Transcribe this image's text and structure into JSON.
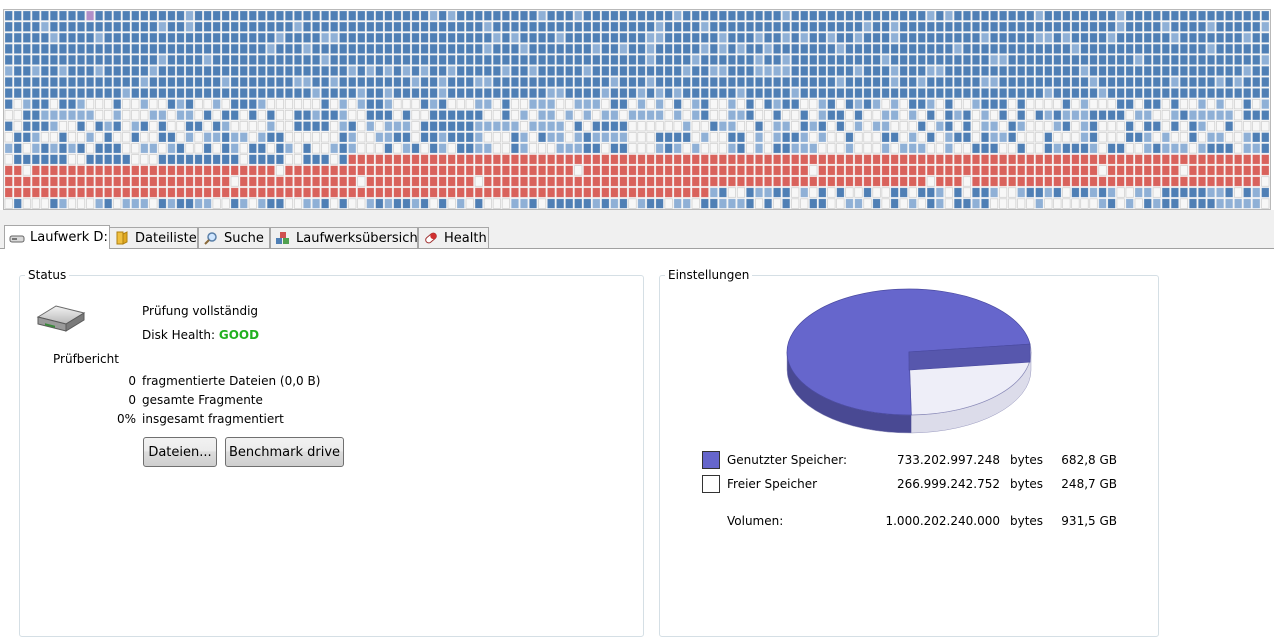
{
  "tabs": [
    {
      "label": "Laufwerk D:",
      "icon": "drive-icon",
      "active": true
    },
    {
      "label": "Dateiliste",
      "icon": "folder-icon",
      "active": false
    },
    {
      "label": "Suche",
      "icon": "magnifier-icon",
      "active": false
    },
    {
      "label": "Laufwerksübersicht",
      "icon": "blocks-icon",
      "active": false
    },
    {
      "label": "Health",
      "icon": "pill-icon",
      "active": false
    }
  ],
  "status": {
    "group_label": "Status",
    "check_text": "Prüfung vollständig",
    "health_label": "Disk Health:",
    "health_value": "GOOD",
    "health_color": "#22b020",
    "report_label": "Prüfbericht",
    "report": [
      {
        "value": "0",
        "label": "fragmentierte Dateien (0,0 B)"
      },
      {
        "value": "0",
        "label": "gesamte Fragmente"
      },
      {
        "value": "0%",
        "label": "insgesamt fragmentiert"
      }
    ],
    "files_button": "Dateien...",
    "benchmark_button": "Benchmark drive"
  },
  "settings": {
    "group_label": "Einstellungen",
    "used_color": "#6666cc",
    "free_color": "#eeeef8",
    "used_fraction": 0.733,
    "legend": [
      {
        "label": "Genutzter Speicher:",
        "bytes": "733.202.997.248",
        "unit": "bytes",
        "size": "682,8 GB",
        "swatch": "#6666cc"
      },
      {
        "label": "Freier Speicher",
        "bytes": "266.999.242.752",
        "unit": "bytes",
        "size": "248,7 GB",
        "swatch": "#ffffff"
      }
    ],
    "volume": {
      "label": "Volumen:",
      "bytes": "1.000.202.240.000",
      "unit": "bytes",
      "size": "931,5 GB"
    }
  },
  "diskmap": {
    "colors": {
      "blue": "#4f7fb5",
      "light_blue": "#8fb0d6",
      "free": "#f7f7f7",
      "red": "#d9625c",
      "violet": "#b08fc8"
    }
  }
}
